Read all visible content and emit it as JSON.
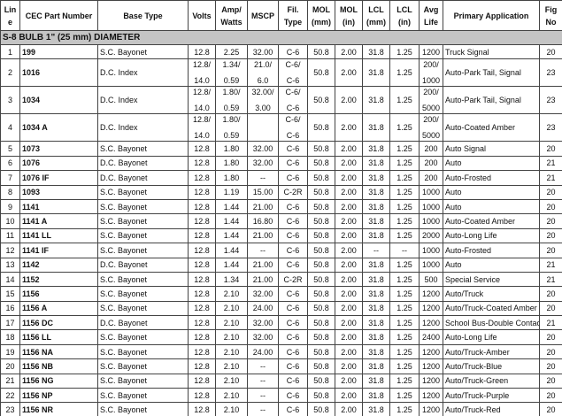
{
  "table": {
    "header": [
      [
        "Lin",
        "e"
      ],
      [
        "CEC Part Number"
      ],
      [
        "Base Type"
      ],
      [
        "Volts"
      ],
      [
        "Amp/",
        "Watts"
      ],
      [
        "MSCP"
      ],
      [
        "Fil.",
        "Type"
      ],
      [
        "MOL",
        "(mm)"
      ],
      [
        "MOL",
        "(in)"
      ],
      [
        "LCL",
        "(mm)"
      ],
      [
        "LCL",
        "(in)"
      ],
      [
        "Avg",
        "Life"
      ],
      [
        "Primary Application"
      ],
      [
        "Fig",
        "No"
      ]
    ],
    "section": "S-8 BULB 1\" (25 mm) DIAMETER",
    "rows": [
      [
        "1",
        "199",
        "S.C. Bayonet",
        "12.8",
        "2.25",
        "32.00",
        "C-6",
        "50.8",
        "2.00",
        "31.8",
        "1.25",
        "1200",
        "Truck Signal",
        "20"
      ],
      [
        "2",
        "1016",
        "D.C. Index",
        [
          "12.8/",
          "14.0"
        ],
        [
          "1.34/",
          "0.59"
        ],
        [
          "21.0/",
          "6.0"
        ],
        [
          "C-6/",
          "C-6"
        ],
        "50.8",
        "2.00",
        "31.8",
        "1.25",
        [
          "200/",
          "1000"
        ],
        "Auto-Park Tail, Signal",
        "23"
      ],
      [
        "3",
        "1034",
        "D.C. Index",
        [
          "12.8/",
          "14.0"
        ],
        [
          "1.80/",
          "0.59"
        ],
        [
          "32.00/",
          "3.00"
        ],
        [
          "C-6/",
          "C-6"
        ],
        "50.8",
        "2.00",
        "31.8",
        "1.25",
        [
          "200/",
          "5000"
        ],
        "Auto-Park Tail, Signal",
        "23"
      ],
      [
        "4",
        "1034 A",
        "D.C. Index",
        [
          "12.8/",
          "14.0"
        ],
        [
          "1.80/",
          "0.59"
        ],
        "",
        [
          "C-6/",
          "C-6"
        ],
        "50.8",
        "2.00",
        "31.8",
        "1.25",
        [
          "200/",
          "5000"
        ],
        "Auto-Coated Amber",
        "23"
      ],
      [
        "5",
        "1073",
        "S.C. Bayonet",
        "12.8",
        "1.80",
        "32.00",
        "C-6",
        "50.8",
        "2.00",
        "31.8",
        "1.25",
        "200",
        "Auto Signal",
        "20"
      ],
      [
        "6",
        "1076",
        "D.C. Bayonet",
        "12.8",
        "1.80",
        "32.00",
        "C-6",
        "50.8",
        "2.00",
        "31.8",
        "1.25",
        "200",
        "Auto",
        "21"
      ],
      [
        "7",
        "1076 IF",
        "D.C. Bayonet",
        "12.8",
        "1.80",
        "--",
        "C-6",
        "50.8",
        "2.00",
        "31.8",
        "1.25",
        "200",
        "Auto-Frosted",
        "21"
      ],
      [
        "8",
        "1093",
        "S.C. Bayonet",
        "12.8",
        "1.19",
        "15.00",
        "C-2R",
        "50.8",
        "2.00",
        "31.8",
        "1.25",
        "1000",
        "Auto",
        "20"
      ],
      [
        "9",
        "1141",
        "S.C. Bayonet",
        "12.8",
        "1.44",
        "21.00",
        "C-6",
        "50.8",
        "2.00",
        "31.8",
        "1.25",
        "1000",
        "Auto",
        "20"
      ],
      [
        "10",
        "1141 A",
        "S.C. Bayonet",
        "12.8",
        "1.44",
        "16.80",
        "C-6",
        "50.8",
        "2.00",
        "31.8",
        "1.25",
        "1000",
        "Auto-Coated Amber",
        "20"
      ],
      [
        "11",
        "1141 LL",
        "S.C. Bayonet",
        "12.8",
        "1.44",
        "21.00",
        "C-6",
        "50.8",
        "2.00",
        "31.8",
        "1.25",
        "2000",
        "Auto-Long Life",
        "20"
      ],
      [
        "12",
        "1141 IF",
        "S.C. Bayonet",
        "12.8",
        "1.44",
        "--",
        "C-6",
        "50.8",
        "2.00",
        "--",
        "--",
        "1000",
        "Auto-Frosted",
        "20"
      ],
      [
        "13",
        "1142",
        "D.C. Bayonet",
        "12.8",
        "1.44",
        "21.00",
        "C-6",
        "50.8",
        "2.00",
        "31.8",
        "1.25",
        "1000",
        "Auto",
        "21"
      ],
      [
        "14",
        "1152",
        "S.C. Bayonet",
        "12.8",
        "1.34",
        "21.00",
        "C-2R",
        "50.8",
        "2.00",
        "31.8",
        "1.25",
        "500",
        "Special Service",
        "21"
      ],
      [
        "15",
        "1156",
        "S.C. Bayonet",
        "12.8",
        "2.10",
        "32.00",
        "C-6",
        "50.8",
        "2.00",
        "31.8",
        "1.25",
        "1200",
        "Auto/Truck",
        "20"
      ],
      [
        "16",
        "1156 A",
        "S.C. Bayonet",
        "12.8",
        "2.10",
        "24.00",
        "C-6",
        "50.8",
        "2.00",
        "31.8",
        "1.25",
        "1200",
        "Auto/Truck-Coated Amber",
        "20"
      ],
      [
        "17",
        "1156 DC",
        "D.C. Bayonet",
        "12.8",
        "2.10",
        "32.00",
        "C-6",
        "50.8",
        "2.00",
        "31.8",
        "1.25",
        "1200",
        "School Bus-Double Contac",
        "21"
      ],
      [
        "18",
        "1156 LL",
        "S.C. Bayonet",
        "12.8",
        "2.10",
        "32.00",
        "C-6",
        "50.8",
        "2.00",
        "31.8",
        "1.25",
        "2400",
        "Auto-Long Life",
        "20"
      ],
      [
        "19",
        "1156 NA",
        "S.C. Bayonet",
        "12.8",
        "2.10",
        "24.00",
        "C-6",
        "50.8",
        "2.00",
        "31.8",
        "1.25",
        "1200",
        "Auto/Truck-Amber",
        "20"
      ],
      [
        "20",
        "1156 NB",
        "S.C. Bayonet",
        "12.8",
        "2.10",
        "--",
        "C-6",
        "50.8",
        "2.00",
        "31.8",
        "1.25",
        "1200",
        "Auto/Truck-Blue",
        "20"
      ],
      [
        "21",
        "1156 NG",
        "S.C. Bayonet",
        "12.8",
        "2.10",
        "--",
        "C-6",
        "50.8",
        "2.00",
        "31.8",
        "1.25",
        "1200",
        "Auto/Truck-Green",
        "20"
      ],
      [
        "22",
        "1156 NP",
        "S.C. Bayonet",
        "12.8",
        "2.10",
        "--",
        "C-6",
        "50.8",
        "2.00",
        "31.8",
        "1.25",
        "1200",
        "Auto/Truck-Purple",
        "20"
      ],
      [
        "23",
        "1156 NR",
        "S.C. Bayonet",
        "12.8",
        "2.10",
        "--",
        "C-6",
        "50.8",
        "2.00",
        "31.8",
        "1.25",
        "1200",
        "Auto/Truck-Red",
        "20"
      ]
    ]
  }
}
